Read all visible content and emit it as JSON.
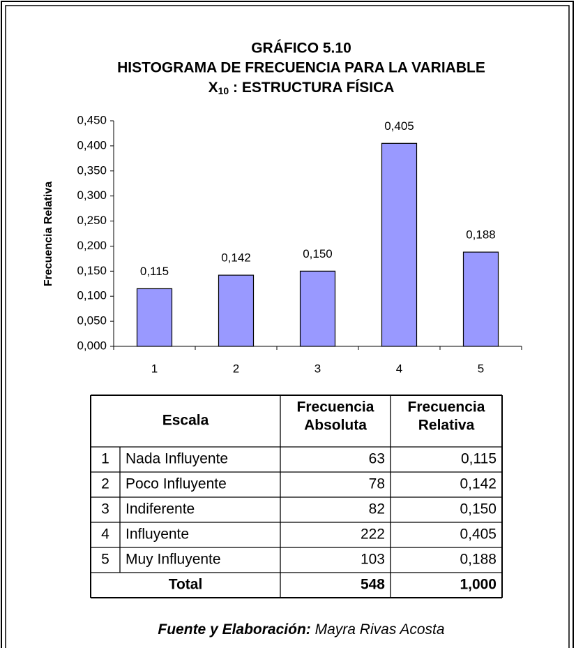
{
  "chart_data": {
    "type": "bar",
    "title": [
      "GRÁFICO  5.10",
      "HISTOGRAMA DE FRECUENCIA PARA LA VARIABLE"
    ],
    "variable": {
      "symbol": "X",
      "subscript": "10",
      "name": " :  ESTRUCTURA FÍSICA"
    },
    "y_label": "Frecuencia Relativa",
    "categories": [
      "1",
      "2",
      "3",
      "4",
      "5"
    ],
    "values": [
      0.115,
      0.142,
      0.15,
      0.405,
      0.188
    ],
    "value_labels": [
      "0,115",
      "0,142",
      "0,150",
      "0,405",
      "0,188"
    ],
    "color": "#9999ff",
    "ylim": [
      0,
      0.45
    ],
    "yticks": [
      {
        "value": 0,
        "label": "0,000"
      },
      {
        "value": 0.05,
        "label": "0,050"
      },
      {
        "value": 0.1,
        "label": "0,100"
      },
      {
        "value": 0.15,
        "label": "0,150"
      },
      {
        "value": 0.2,
        "label": "0,200"
      },
      {
        "value": 0.25,
        "label": "0,250"
      },
      {
        "value": 0.3,
        "label": "0,300"
      },
      {
        "value": 0.35,
        "label": "0,350"
      },
      {
        "value": 0.4,
        "label": "0,400"
      },
      {
        "value": 0.45,
        "label": "0,450"
      }
    ]
  },
  "table": {
    "header": [
      "Escala",
      [
        "Frecuencia",
        "Absoluta"
      ],
      [
        "Frecuencia",
        "Relativa"
      ]
    ],
    "rows": [
      [
        "1",
        "Nada Influyente",
        "63",
        "0,115"
      ],
      [
        "2",
        "Poco Influyente",
        "78",
        "0,142"
      ],
      [
        "3",
        "Indiferente",
        "82",
        "0,150"
      ],
      [
        "4",
        "Influyente",
        "222",
        "0,405"
      ],
      [
        "5",
        "Muy Influyente",
        "103",
        "0,188"
      ]
    ],
    "total": [
      "Total",
      "548",
      "1,000"
    ]
  },
  "footer": {
    "label": "Fuente y Elaboración:",
    "author": "Mayra Rivas Acosta"
  }
}
